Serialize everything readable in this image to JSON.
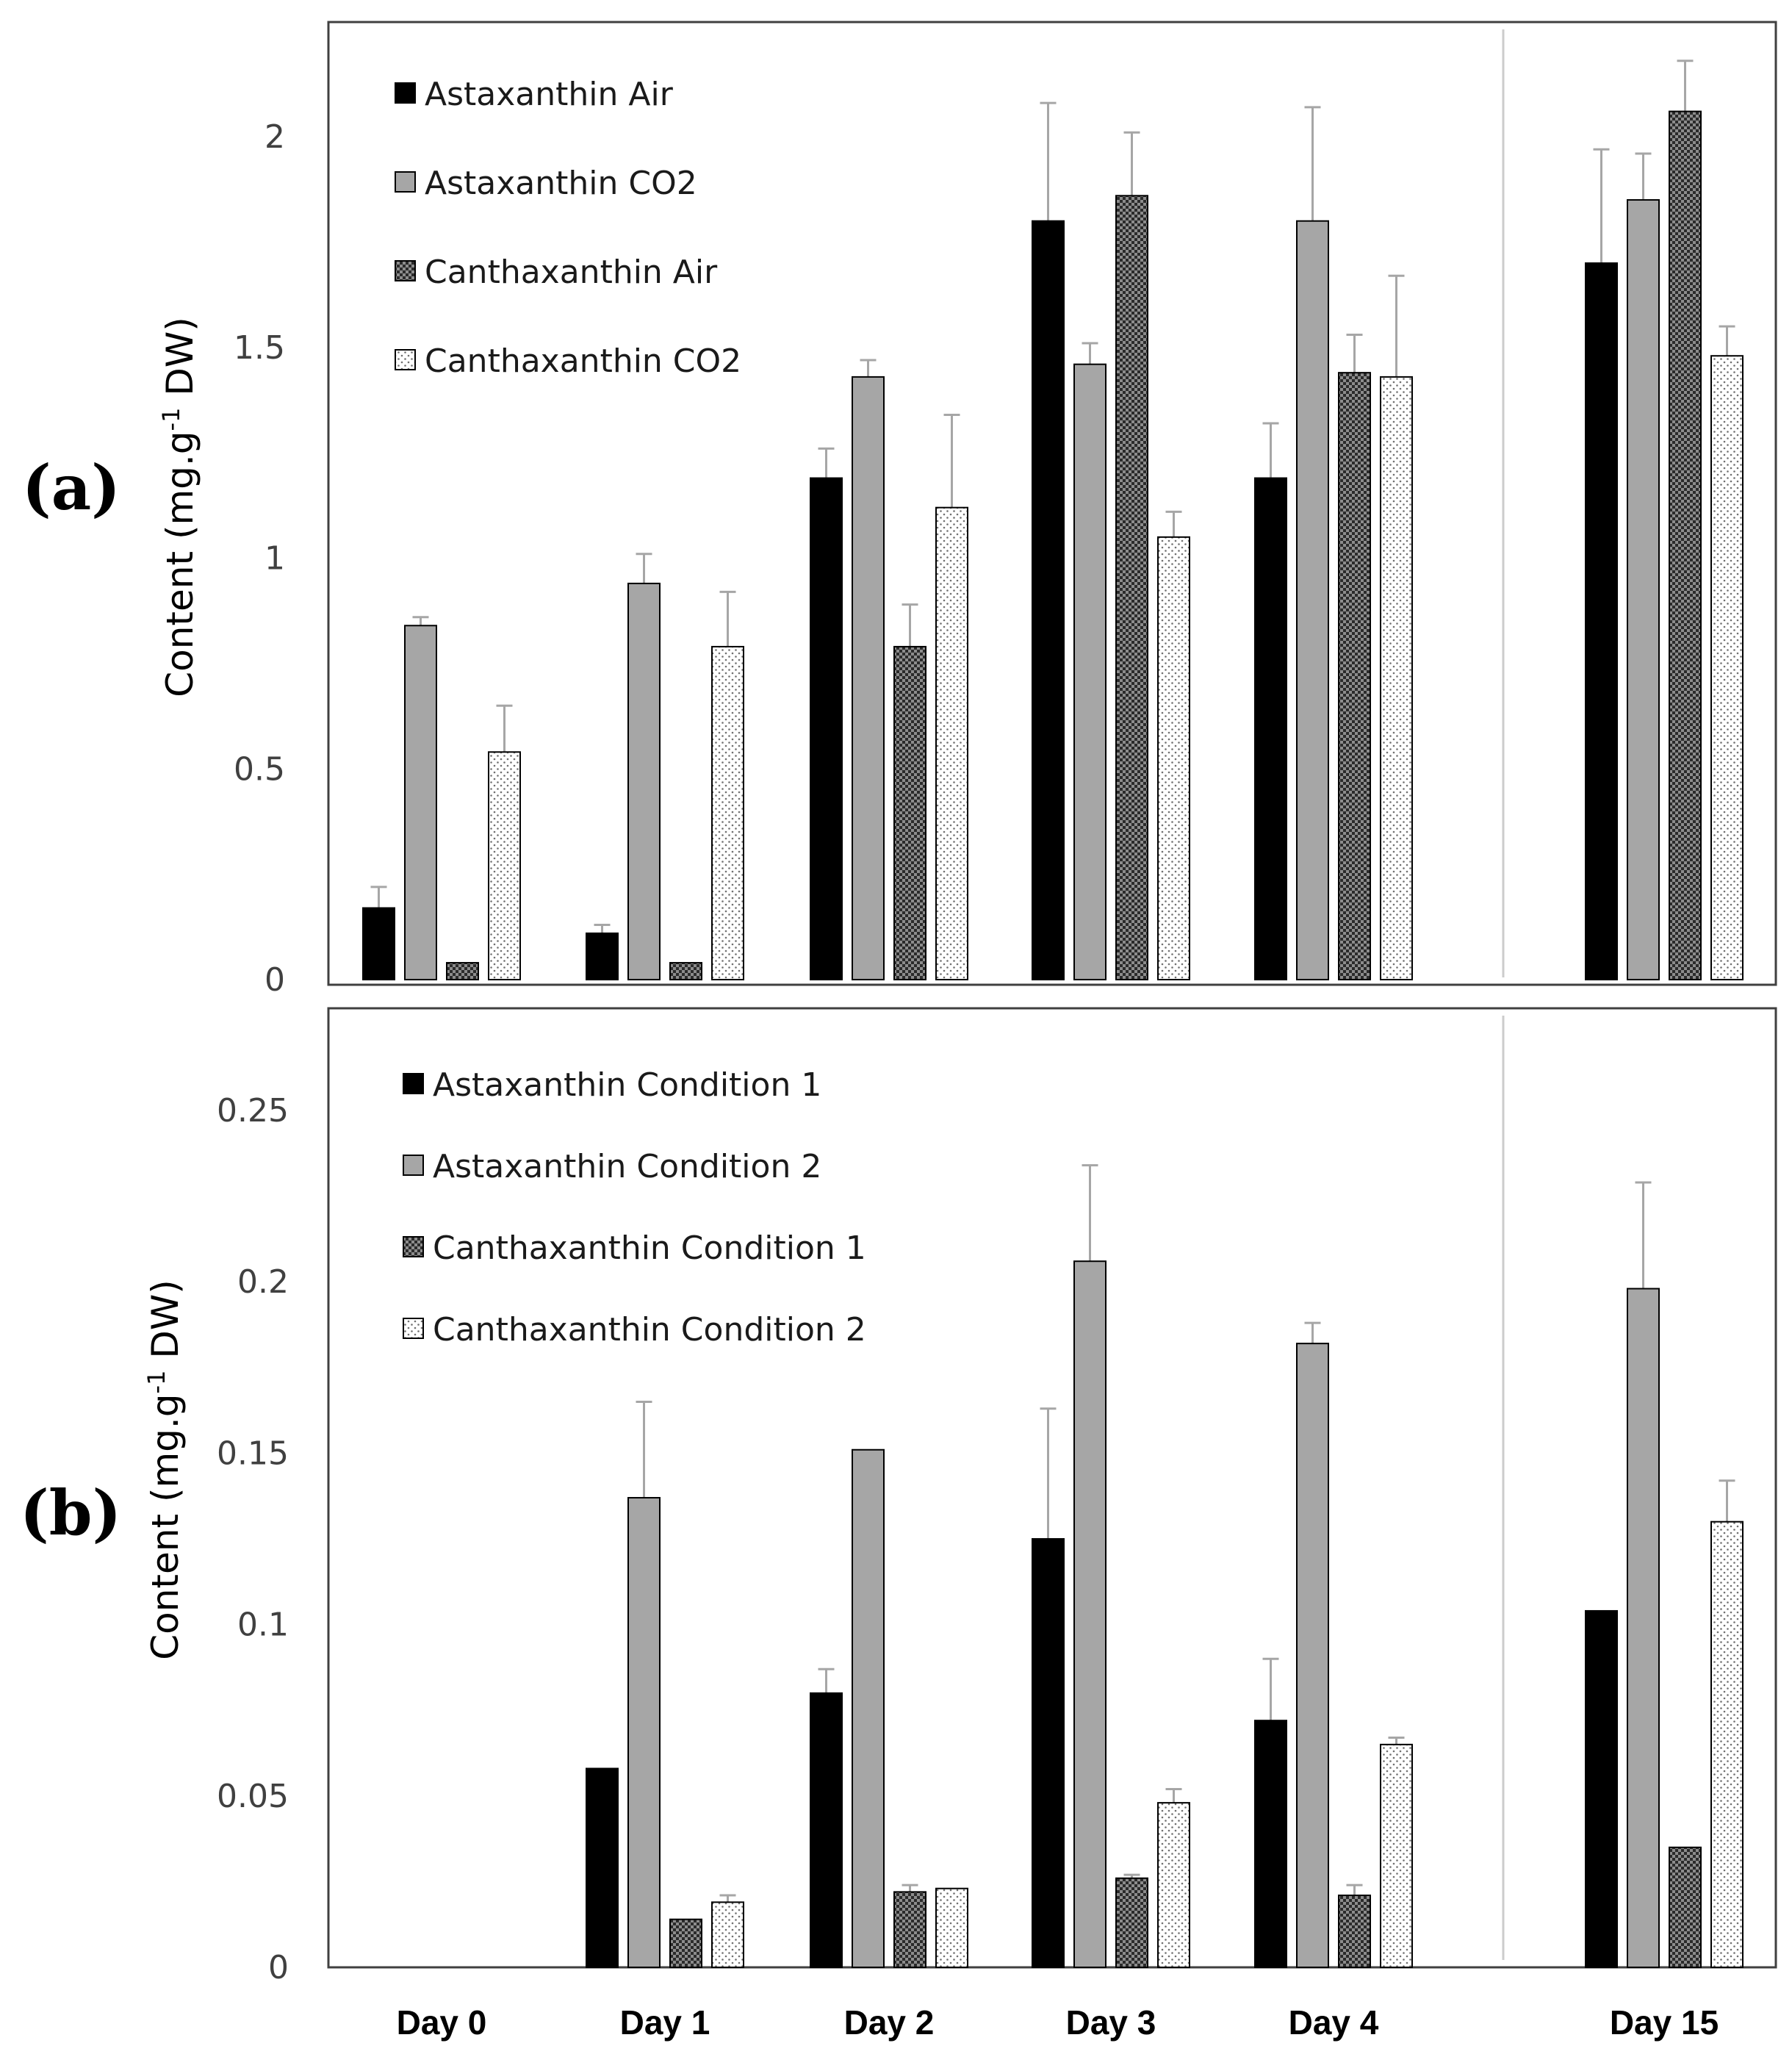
{
  "colors": {
    "astaxanthin_1": "#000000",
    "astaxanthin_2": "#a6a6a6",
    "canthaxanthin_1": "#555555",
    "canthaxanthin_2": "#ffffff",
    "frame": "#404040",
    "divider": "#cccccc",
    "errorbar": "#a6a6a6"
  },
  "x_category_labels": [
    "Day 0",
    "Day 1",
    "Day 2",
    "Day 3",
    "Day 4",
    "Day 15"
  ],
  "chart_data": [
    {
      "type": "bar",
      "panel_label": "(a)",
      "title": "",
      "xlabel": "",
      "ylabel": "Content (mg.g-1 DW)",
      "ylabel_parts": {
        "pre": "Content (mg.g",
        "sup": "-1",
        "post": " DW)"
      },
      "ylim": [
        0,
        2.3
      ],
      "yticks": [
        0,
        0.5,
        1,
        1.5,
        2
      ],
      "ytick_labels": [
        "0",
        "0.5",
        "1",
        "1.5",
        "2"
      ],
      "grid": false,
      "legend_position": "top-left",
      "categories": [
        "Day 0",
        "Day 1",
        "Day 2",
        "Day 3",
        "Day 4",
        "Day 15"
      ],
      "series": [
        {
          "name": "Astaxanthin Air",
          "pattern": "solid-black",
          "values": [
            0.17,
            0.11,
            1.19,
            1.8,
            1.19,
            1.7
          ],
          "errors": [
            0.05,
            0.02,
            0.07,
            0.28,
            0.13,
            0.27
          ]
        },
        {
          "name": "Astaxanthin CO2",
          "pattern": "solid-gray",
          "values": [
            0.84,
            0.94,
            1.43,
            1.46,
            1.8,
            1.85
          ],
          "errors": [
            0.02,
            0.07,
            0.04,
            0.05,
            0.27,
            0.11
          ]
        },
        {
          "name": "Canthaxanthin Air",
          "pattern": "checker",
          "values": [
            0.04,
            0.04,
            0.79,
            1.86,
            1.44,
            2.06
          ],
          "errors": [
            0.0,
            0.0,
            0.1,
            0.15,
            0.09,
            0.12
          ]
        },
        {
          "name": "Canthaxanthin CO2",
          "pattern": "dotted",
          "values": [
            0.54,
            0.79,
            1.12,
            1.05,
            1.43,
            1.48
          ],
          "errors": [
            0.11,
            0.13,
            0.22,
            0.06,
            0.24,
            0.07
          ]
        }
      ]
    },
    {
      "type": "bar",
      "panel_label": "(b)",
      "title": "",
      "xlabel": "",
      "ylabel": "Content (mg.g-1 DW)",
      "ylabel_parts": {
        "pre": "Content (mg.g",
        "sup": "-1",
        "post": " DW)"
      },
      "ylim": [
        0,
        0.28
      ],
      "yticks": [
        0,
        0.05,
        0.1,
        0.15,
        0.2,
        0.25
      ],
      "ytick_labels": [
        "0",
        "0.05",
        "0.1",
        "0.15",
        "0.2",
        "0.25"
      ],
      "grid": false,
      "legend_position": "top-left",
      "categories": [
        "Day 0",
        "Day 1",
        "Day 2",
        "Day 3",
        "Day 4",
        "Day 15"
      ],
      "series": [
        {
          "name": "Astaxanthin Condition 1",
          "pattern": "solid-black",
          "values": [
            0,
            0.058,
            0.08,
            0.125,
            0.072,
            0.104
          ],
          "errors": [
            0,
            0,
            0.007,
            0.038,
            0.018,
            0
          ]
        },
        {
          "name": "Astaxanthin Condition 2",
          "pattern": "solid-gray",
          "values": [
            0,
            0.137,
            0.151,
            0.206,
            0.182,
            0.198
          ],
          "errors": [
            0,
            0.028,
            0,
            0.028,
            0.006,
            0.031
          ]
        },
        {
          "name": "Canthaxanthin Condition 1",
          "pattern": "checker",
          "values": [
            0,
            0.014,
            0.022,
            0.026,
            0.021,
            0.035
          ],
          "errors": [
            0,
            0,
            0.002,
            0.001,
            0.003,
            0
          ]
        },
        {
          "name": "Canthaxanthin Condition 2",
          "pattern": "dotted",
          "values": [
            0,
            0.019,
            0.023,
            0.048,
            0.065,
            0.13
          ],
          "errors": [
            0,
            0.002,
            0,
            0.004,
            0.002,
            0.012
          ]
        }
      ]
    }
  ]
}
